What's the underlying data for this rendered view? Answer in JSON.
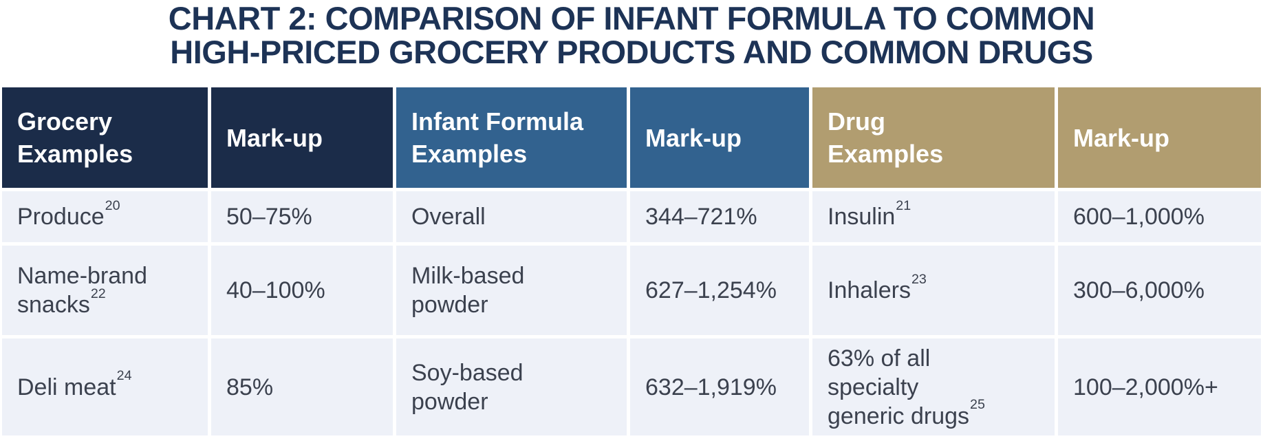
{
  "title": {
    "line1": "CHART 2: COMPARISON OF INFANT FORMULA TO COMMON",
    "line2": "HIGH-PRICED GROCERY PRODUCTS AND COMMON DRUGS"
  },
  "colors": {
    "title_navy": "#1d3356",
    "header_navy": "#1b2c49",
    "header_blue": "#32628f",
    "header_tan": "#b19d70",
    "cell_background": "#eef1f8",
    "cell_text": "#3b414e",
    "header_text": "#ffffff"
  },
  "table": {
    "headers": [
      {
        "text": "Grocery\nExamples",
        "theme": "navy"
      },
      {
        "text": "Mark-up",
        "theme": "navy"
      },
      {
        "text": "Infant Formula\nExamples",
        "theme": "blue"
      },
      {
        "text": "Mark-up",
        "theme": "blue"
      },
      {
        "text": "Drug\nExamples",
        "theme": "tan"
      },
      {
        "text": "Mark-up",
        "theme": "tan"
      }
    ],
    "rows": [
      [
        {
          "text": "Produce",
          "sup": "20"
        },
        {
          "text": "50–75%"
        },
        {
          "text": "Overall"
        },
        {
          "text": "344–721%"
        },
        {
          "text": "Insulin",
          "sup": "21"
        },
        {
          "text": "600–1,000%"
        }
      ],
      [
        {
          "text": "Name-brand\nsnacks",
          "sup": "22"
        },
        {
          "text": "40–100%"
        },
        {
          "text": "Milk-based\npowder"
        },
        {
          "text": "627–1,254%"
        },
        {
          "text": "Inhalers",
          "sup": "23"
        },
        {
          "text": "300–6,000%"
        }
      ],
      [
        {
          "text": "Deli meat",
          "sup": "24"
        },
        {
          "text": "85%"
        },
        {
          "text": "Soy-based\npowder"
        },
        {
          "text": "632–1,919%"
        },
        {
          "text": "63% of all\nspecialty\ngeneric drugs",
          "sup": "25"
        },
        {
          "text": "100–2,000%+"
        }
      ]
    ]
  },
  "chart_data": {
    "type": "table",
    "title": "CHART 2: COMPARISON OF INFANT FORMULA TO COMMON HIGH-PRICED GROCERY PRODUCTS AND COMMON DRUGS",
    "columns": [
      "Grocery Examples",
      "Mark-up",
      "Infant Formula Examples",
      "Mark-up",
      "Drug Examples",
      "Mark-up"
    ],
    "rows": [
      [
        "Produce²⁰",
        "50–75%",
        "Overall",
        "344–721%",
        "Insulin²¹",
        "600–1,000%"
      ],
      [
        "Name-brand snacks²²",
        "40–100%",
        "Milk-based powder",
        "627–1,254%",
        "Inhalers²³",
        "300–6,000%"
      ],
      [
        "Deli meat²⁴",
        "85%",
        "Soy-based powder",
        "632–1,919%",
        "63% of all specialty generic drugs²⁵",
        "100–2,000%+"
      ]
    ]
  }
}
